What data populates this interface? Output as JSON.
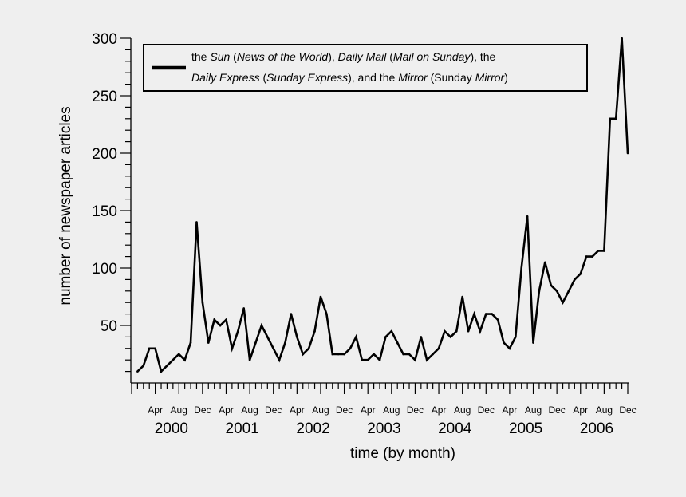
{
  "chart_data": {
    "type": "line",
    "xlabel": "time (by month)",
    "ylabel": "number of newspaper articles",
    "ylim": [
      0,
      300
    ],
    "yticks": [
      300,
      250,
      200,
      150,
      100,
      50
    ],
    "x_range": [
      "1999-12",
      "2006-12"
    ],
    "month_tick_labels": [
      {
        "date": "2000-04",
        "label": "Apr"
      },
      {
        "date": "2000-08",
        "label": "Aug"
      },
      {
        "date": "2000-12",
        "label": "Dec"
      },
      {
        "date": "2001-04",
        "label": "Apr"
      },
      {
        "date": "2001-08",
        "label": "Aug"
      },
      {
        "date": "2001-12",
        "label": "Dec"
      },
      {
        "date": "2002-04",
        "label": "Apr"
      },
      {
        "date": "2002-08",
        "label": "Aug"
      },
      {
        "date": "2002-12",
        "label": "Dec"
      },
      {
        "date": "2003-04",
        "label": "Apr"
      },
      {
        "date": "2003-08",
        "label": "Aug"
      },
      {
        "date": "2003-12",
        "label": "Dec"
      },
      {
        "date": "2004-04",
        "label": "Apr"
      },
      {
        "date": "2004-08",
        "label": "Aug"
      },
      {
        "date": "2004-12",
        "label": "Dec"
      },
      {
        "date": "2005-04",
        "label": "Apr"
      },
      {
        "date": "2005-08",
        "label": "Aug"
      },
      {
        "date": "2005-12",
        "label": "Dec"
      },
      {
        "date": "2006-04",
        "label": "Apr"
      },
      {
        "date": "2006-08",
        "label": "Aug"
      },
      {
        "date": "2006-12",
        "label": "Dec"
      }
    ],
    "year_labels": [
      {
        "label": "2000",
        "center": "2000-07"
      },
      {
        "label": "2001",
        "center": "2001-07"
      },
      {
        "label": "2002",
        "center": "2002-07"
      },
      {
        "label": "2003",
        "center": "2003-07"
      },
      {
        "label": "2004",
        "center": "2004-07"
      },
      {
        "label": "2005",
        "center": "2005-07"
      },
      {
        "label": "2006",
        "center": "2006-07"
      }
    ],
    "legend": {
      "placement": "top",
      "line1": [
        {
          "text": "the ",
          "italic": false
        },
        {
          "text": "Sun",
          "italic": true
        },
        {
          "text": " (",
          "italic": false
        },
        {
          "text": "News of the World",
          "italic": true
        },
        {
          "text": "), ",
          "italic": false
        },
        {
          "text": "Daily Mail",
          "italic": true
        },
        {
          "text": " (",
          "italic": false
        },
        {
          "text": "Mail on Sunday",
          "italic": true
        },
        {
          "text": "), the",
          "italic": false
        }
      ],
      "line2": [
        {
          "text": "Daily Express",
          "italic": true
        },
        {
          "text": " (",
          "italic": false
        },
        {
          "text": "Sunday Express",
          "italic": true
        },
        {
          "text": "), and the ",
          "italic": false
        },
        {
          "text": "Mirror",
          "italic": true
        },
        {
          "text": " (Sunday ",
          "italic": false
        },
        {
          "text": "Mirror",
          "italic": true
        },
        {
          "text": ")",
          "italic": false
        }
      ]
    },
    "series": [
      {
        "color": "#000000",
        "x": [
          "2000-01",
          "2000-02",
          "2000-03",
          "2000-04",
          "2000-05",
          "2000-06",
          "2000-07",
          "2000-08",
          "2000-09",
          "2000-10",
          "2000-11",
          "2000-12",
          "2001-01",
          "2001-02",
          "2001-03",
          "2001-04",
          "2001-05",
          "2001-06",
          "2001-07",
          "2001-08",
          "2001-09",
          "2001-10",
          "2001-11",
          "2001-12",
          "2002-01",
          "2002-02",
          "2002-03",
          "2002-04",
          "2002-05",
          "2002-06",
          "2002-07",
          "2002-08",
          "2002-09",
          "2002-10",
          "2002-11",
          "2002-12",
          "2003-01",
          "2003-02",
          "2003-03",
          "2003-04",
          "2003-05",
          "2003-06",
          "2003-07",
          "2003-08",
          "2003-09",
          "2003-10",
          "2003-11",
          "2003-12",
          "2004-01",
          "2004-02",
          "2004-03",
          "2004-04",
          "2004-05",
          "2004-06",
          "2004-07",
          "2004-08",
          "2004-09",
          "2004-10",
          "2004-11",
          "2004-12",
          "2005-01",
          "2005-02",
          "2005-03",
          "2005-04",
          "2005-05",
          "2005-06",
          "2005-07",
          "2005-08",
          "2005-09",
          "2005-10",
          "2005-11",
          "2005-12",
          "2006-01",
          "2006-02",
          "2006-03",
          "2006-04",
          "2006-05",
          "2006-06",
          "2006-07",
          "2006-08",
          "2006-09",
          "2006-10",
          "2006-11",
          "2006-12"
        ],
        "values": [
          10,
          15,
          30,
          30,
          10,
          15,
          20,
          25,
          20,
          35,
          140,
          70,
          35,
          55,
          50,
          55,
          30,
          45,
          65,
          20,
          35,
          50,
          40,
          30,
          20,
          35,
          60,
          40,
          25,
          30,
          45,
          75,
          60,
          25,
          25,
          25,
          30,
          40,
          20,
          20,
          25,
          20,
          40,
          45,
          35,
          25,
          25,
          20,
          40,
          20,
          25,
          30,
          45,
          40,
          45,
          75,
          45,
          60,
          45,
          60,
          60,
          55,
          35,
          30,
          40,
          100,
          145,
          35,
          80,
          105,
          85,
          80,
          70,
          80,
          90,
          95,
          110,
          110,
          115,
          115,
          230,
          230,
          300,
          200
        ]
      }
    ]
  }
}
